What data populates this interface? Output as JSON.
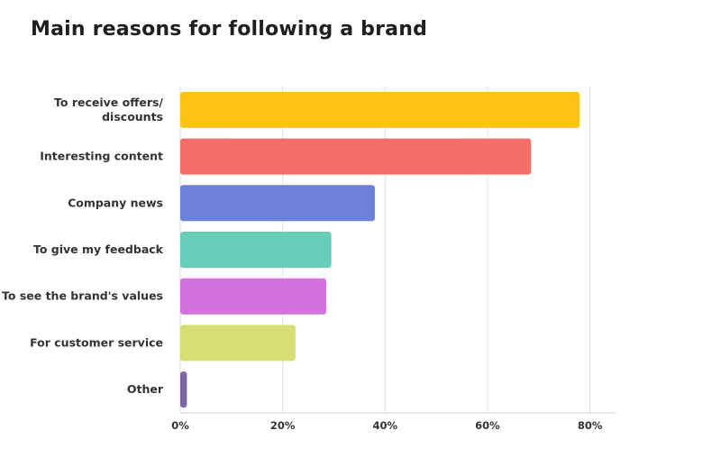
{
  "chart_data": {
    "type": "bar",
    "orientation": "horizontal",
    "title": "Main reasons for following a brand",
    "xlabel": "",
    "ylabel": "",
    "categories": [
      [
        "To receive offers/",
        "discounts"
      ],
      [
        "Interesting content"
      ],
      [
        "Company news"
      ],
      [
        "To give my feedback"
      ],
      [
        "To see the brand's values"
      ],
      [
        "For customer service"
      ],
      [
        "Other"
      ]
    ],
    "values": [
      78,
      68.5,
      38,
      29.5,
      28.5,
      22.5,
      1.3
    ],
    "colors": [
      "#fcc515",
      "#f56f6a",
      "#6b81d9",
      "#66cdb8",
      "#d372df",
      "#d6df71",
      "#7d67a2"
    ],
    "xlim": [
      0,
      85
    ],
    "xticks": [
      0,
      20,
      40,
      60,
      80
    ],
    "xtick_labels": [
      "0%",
      "20%",
      "40%",
      "60%",
      "80%"
    ],
    "grid": true
  }
}
